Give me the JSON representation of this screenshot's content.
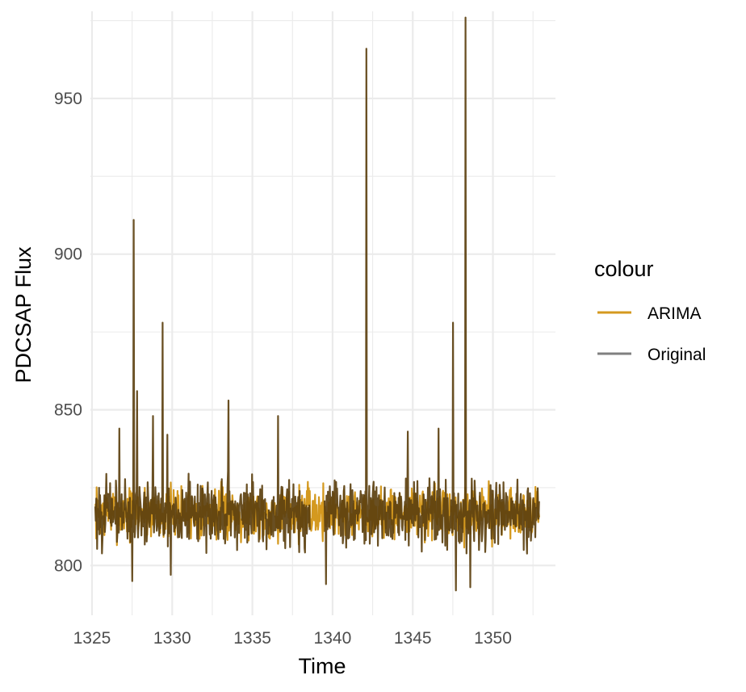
{
  "chart_data": {
    "type": "line",
    "xlabel": "Time",
    "ylabel": "PDCSAP Flux",
    "xlim": [
      1324.9,
      1353.9
    ],
    "ylim": [
      784,
      978
    ],
    "x_ticks": [
      1325,
      1330,
      1335,
      1340,
      1345,
      1350
    ],
    "x_tick_labels": [
      "1325",
      "1330",
      "1335",
      "1340",
      "1345",
      "1350"
    ],
    "y_ticks": [
      800,
      850,
      900,
      950
    ],
    "y_tick_labels": [
      "800",
      "850",
      "900",
      "950"
    ],
    "grid": true,
    "legend": {
      "title": "colour",
      "position": "right",
      "entries": [
        "ARIMA",
        "Original"
      ]
    },
    "series": [
      {
        "name": "ARIMA",
        "color": "#d4991f",
        "description_range": [
          1325.2,
          1352.9
        ],
        "base": 817,
        "spread": 11
      },
      {
        "name": "Original",
        "color": "#5c400f",
        "segments": [
          [
            1325.2,
            1338.6
          ],
          [
            1339.5,
            1352.9
          ]
        ],
        "base": 817,
        "spread": 11,
        "spikes": [
          {
            "x": 1327.6,
            "y": 911
          },
          {
            "x": 1327.8,
            "y": 856
          },
          {
            "x": 1328.8,
            "y": 848
          },
          {
            "x": 1329.4,
            "y": 878
          },
          {
            "x": 1329.7,
            "y": 842
          },
          {
            "x": 1333.5,
            "y": 853
          },
          {
            "x": 1336.6,
            "y": 848
          },
          {
            "x": 1342.1,
            "y": 966
          },
          {
            "x": 1347.5,
            "y": 878
          },
          {
            "x": 1348.3,
            "y": 976
          },
          {
            "x": 1344.7,
            "y": 843
          },
          {
            "x": 1346.6,
            "y": 844
          },
          {
            "x": 1326.7,
            "y": 844
          }
        ],
        "dips": [
          {
            "x": 1339.6,
            "y": 794
          },
          {
            "x": 1347.7,
            "y": 792
          },
          {
            "x": 1348.6,
            "y": 793
          },
          {
            "x": 1327.5,
            "y": 795
          },
          {
            "x": 1329.9,
            "y": 797
          }
        ]
      }
    ]
  }
}
